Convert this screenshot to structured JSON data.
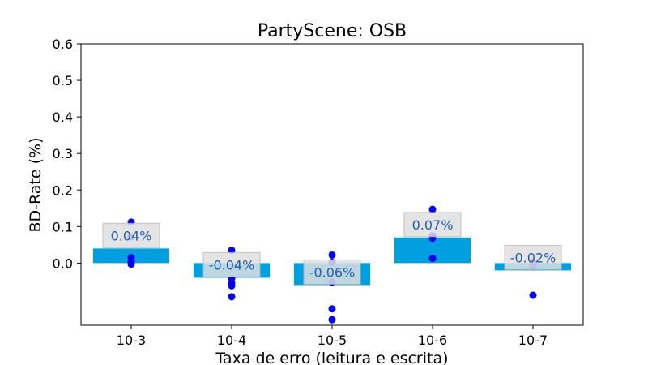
{
  "chart_data": {
    "type": "bar",
    "title": "PartyScene: OSB",
    "xlabel": "Taxa de erro (leitura e escrita)",
    "ylabel": "BD-Rate (%)",
    "ylim": [
      -0.17,
      0.6
    ],
    "yticks": [
      0.0,
      0.1,
      0.2,
      0.3,
      0.4,
      0.5,
      0.6
    ],
    "ytick_labels": [
      "0.0",
      "0.1",
      "0.2",
      "0.3",
      "0.4",
      "0.5",
      "0.6"
    ],
    "categories": [
      "10-3",
      "10-4",
      "10-5",
      "10-6",
      "10-7"
    ],
    "values": [
      0.04,
      -0.04,
      -0.06,
      0.07,
      -0.02
    ],
    "value_labels": [
      "0.04%",
      "-0.04%",
      "-0.06%",
      "0.07%",
      "-0.02%"
    ],
    "points": [
      [
        0.112,
        0.072,
        0.015,
        0.003,
        -0.003
      ],
      [
        0.035,
        -0.042,
        -0.055,
        -0.062,
        -0.092
      ],
      [
        0.022,
        0.002,
        -0.052,
        -0.125,
        -0.155
      ],
      [
        0.147,
        0.075,
        0.068,
        0.013
      ],
      [
        0.003,
        -0.003,
        -0.008,
        -0.088
      ]
    ],
    "grid": false,
    "legend": "none",
    "colors": {
      "bar": "#00a0e0",
      "point": "#0000ee",
      "label_text": "#1f5fb0",
      "label_box": "#e0e0e0"
    }
  }
}
